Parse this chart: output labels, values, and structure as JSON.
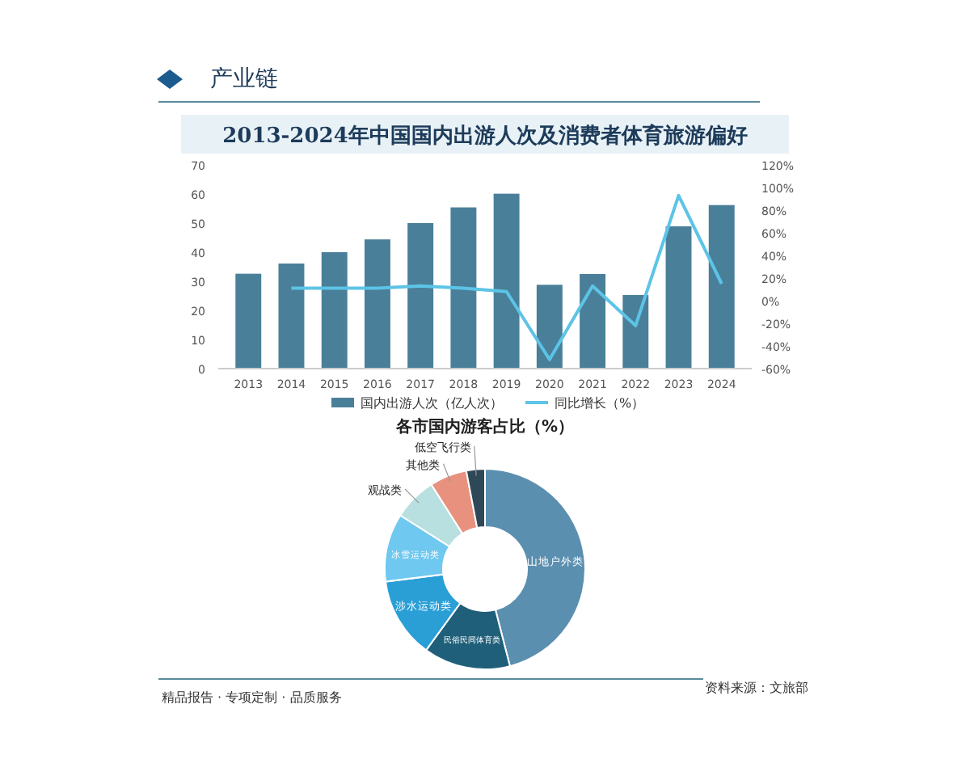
{
  "chart_data": [
    {
      "type": "bar",
      "title": "2013-2024年中国国内出游人次及消费者体育旅游偏好",
      "annotations": [
        "产业链"
      ],
      "categories": [
        "2013",
        "2014",
        "2015",
        "2016",
        "2017",
        "2018",
        "2019",
        "2020",
        "2021",
        "2022",
        "2023",
        "2024"
      ],
      "series": [
        {
          "type": "bar",
          "name": "国内出游人次（亿人次）",
          "color": "#4a7f99",
          "values": [
            32.6,
            36.1,
            40,
            44.4,
            50,
            55.4,
            60.1,
            28.8,
            32.5,
            25.3,
            48.9,
            56.2
          ]
        },
        {
          "type": "line",
          "name": "同比增长（%）",
          "color": "#5cc4e6",
          "axis": "y2",
          "values": [
            null,
            11,
            11,
            11,
            13,
            11,
            8,
            -52,
            13,
            -22,
            93,
            15
          ]
        }
      ],
      "ylim": [
        0,
        70
      ],
      "yticks": [
        0,
        10,
        20,
        30,
        40,
        50,
        60,
        70
      ],
      "y2lim": [
        -60,
        120
      ],
      "y2ticks": [
        {
          "value": -60,
          "label": "-60%"
        },
        {
          "value": -40,
          "label": "-40%"
        },
        {
          "value": -20,
          "label": "-20%"
        },
        {
          "value": 0,
          "label": "0%"
        },
        {
          "value": 20,
          "label": "20%"
        },
        {
          "value": 40,
          "label": "40%"
        },
        {
          "value": 60,
          "label": "60%"
        },
        {
          "value": 80,
          "label": "80%"
        },
        {
          "value": 100,
          "label": "100%"
        },
        {
          "value": 120,
          "label": "120%"
        }
      ],
      "legend": "bottom"
    },
    {
      "type": "donut",
      "title": "各市国内游客占比（%）",
      "annotations": [
        "精品报告 · 专项定制 · 品质服务",
        "资料来源：文旅部"
      ],
      "categories": [
        "山地户外类",
        "民俗民间体育类",
        "涉水运动类",
        "冰雪运动类",
        "观战类",
        "其他类",
        "低空飞行类"
      ],
      "values": [
        46,
        14,
        13,
        11,
        7,
        6,
        3
      ],
      "colors": [
        "#5b8fb0",
        "#1f5f7a",
        "#2a9fd6",
        "#6fc8ef",
        "#b9e0e0",
        "#e8917e",
        "#2f4858"
      ]
    }
  ]
}
